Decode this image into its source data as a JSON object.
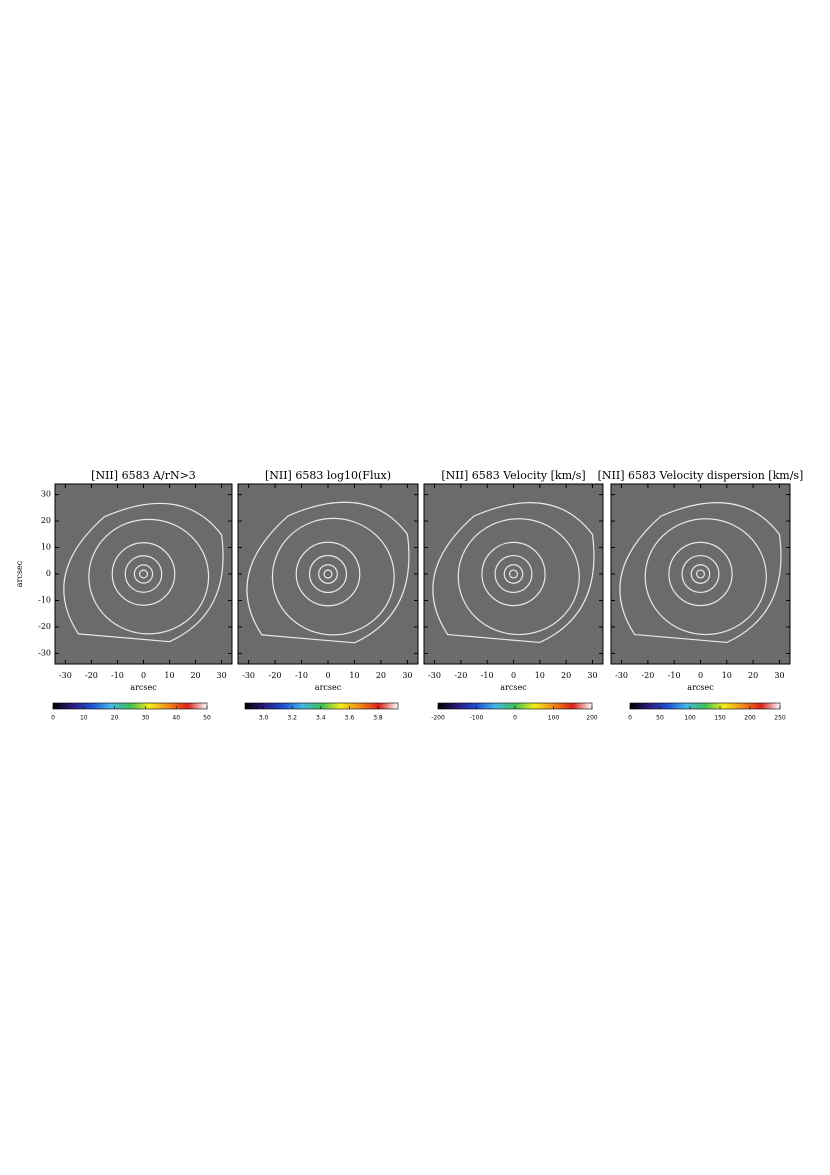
{
  "chart_data": [
    {
      "type": "map",
      "title": "[NII] 6583 A/rN>3",
      "xlabel": "arcsec",
      "ylabel": "arcsec",
      "xlim": [
        -34,
        34
      ],
      "xticks": [
        -30,
        -20,
        -10,
        0,
        10,
        20,
        30
      ],
      "ylim": [
        -34,
        34
      ],
      "yticks": [
        -30,
        -20,
        -10,
        0,
        10,
        20,
        30
      ],
      "colorbar_lim": [
        0,
        50
      ],
      "colorbar_ticks": [
        0,
        10,
        20,
        30,
        40,
        50
      ],
      "colormap": [
        "#000000",
        "#2a1a7a",
        "#1f4fd0",
        "#46b4e6",
        "#3fbf5a",
        "#f2ee1a",
        "#f08a1a",
        "#d8221a",
        "#ffffff"
      ]
    },
    {
      "type": "map",
      "title": "[NII] 6583 log10(Flux)",
      "xlabel": "arcsec",
      "xlim": [
        -34,
        34
      ],
      "xticks": [
        -30,
        -20,
        -10,
        0,
        10,
        20,
        30
      ],
      "colorbar_lim": [
        2.87,
        3.94
      ],
      "colorbar_ticks": [
        {
          "value": 3,
          "label": "3.0"
        },
        3.2,
        3.4,
        3.6,
        3.8
      ],
      "colormap": [
        "#000000",
        "#2a1a7a",
        "#1f4fd0",
        "#46b4e6",
        "#3fbf5a",
        "#f2ee1a",
        "#f08a1a",
        "#d8221a",
        "#ffffff"
      ]
    },
    {
      "type": "map",
      "title": "[NII] 6583 Velocity [km/s]",
      "xlabel": "arcsec",
      "xlim": [
        -34,
        34
      ],
      "xticks": [
        -30,
        -20,
        -10,
        0,
        10,
        20,
        30
      ],
      "colorbar_lim": [
        -200,
        200
      ],
      "colorbar_ticks": [
        -200,
        -100,
        0,
        100,
        200
      ],
      "colormap": [
        "#000000",
        "#2a1a7a",
        "#1f4fd0",
        "#46b4e6",
        "#3fbf5a",
        "#f2ee1a",
        "#f08a1a",
        "#d8221a",
        "#ffffff"
      ]
    },
    {
      "type": "map",
      "title": "[NII] 6583 Velocity dispersion [km/s]",
      "xlabel": "arcsec",
      "xlim": [
        -34,
        34
      ],
      "xticks": [
        -30,
        -20,
        -10,
        0,
        10,
        20,
        30
      ],
      "colorbar_lim": [
        0,
        250
      ],
      "colorbar_ticks": [
        0,
        50,
        100,
        150,
        200,
        250
      ],
      "colormap": [
        "#000000",
        "#2a1a7a",
        "#1f4fd0",
        "#46b4e6",
        "#3fbf5a",
        "#f2ee1a",
        "#f08a1a",
        "#d8221a",
        "#ffffff"
      ]
    }
  ]
}
